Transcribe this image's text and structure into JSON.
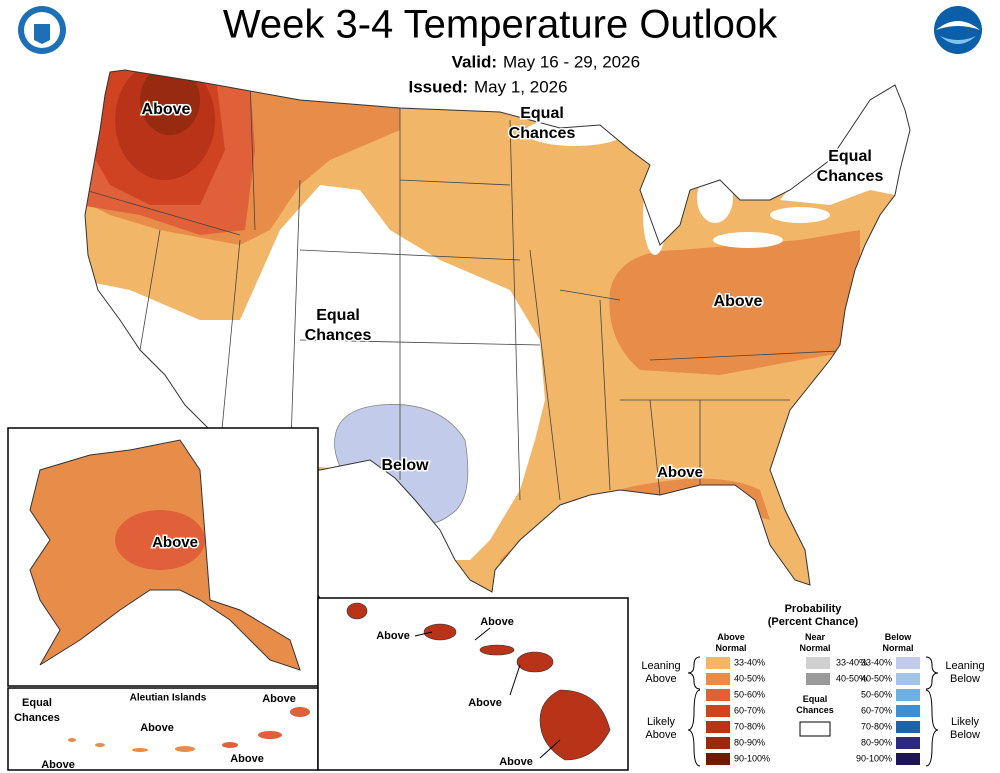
{
  "header": {
    "title": "Week 3-4 Temperature Outlook",
    "valid_label": "Valid:",
    "valid": "May 16 - 29, 2026",
    "issued_label": "Issued:",
    "issued": "May 1, 2026"
  },
  "map_labels": [
    {
      "lines": [
        "Above"
      ]
    },
    {
      "lines": [
        "Equal",
        "Chances"
      ]
    },
    {
      "lines": [
        "Equal",
        "Chances"
      ]
    },
    {
      "lines": [
        "Equal",
        "Chances"
      ]
    },
    {
      "lines": [
        "Above"
      ]
    },
    {
      "lines": [
        "Below"
      ]
    },
    {
      "lines": [
        "Above"
      ]
    },
    {
      "lines": [
        "Above"
      ]
    },
    {
      "lines": [
        "Above"
      ]
    },
    {
      "lines": [
        "Above"
      ]
    },
    {
      "lines": [
        "Above"
      ]
    },
    {
      "lines": [
        "Above"
      ]
    },
    {
      "lines": [
        "Equal",
        "Chances"
      ]
    },
    {
      "lines": [
        "Above"
      ]
    },
    {
      "lines": [
        "Above"
      ]
    },
    {
      "lines": [
        "Above"
      ]
    },
    {
      "lines": [
        "Above"
      ]
    }
  ],
  "aleutian_title": "Aleutian Islands",
  "legend": {
    "title": [
      "Probability",
      "(Percent Chance)"
    ],
    "above_header": [
      "Above",
      "Normal"
    ],
    "near_header": [
      "Near",
      "Normal"
    ],
    "below_header": [
      "Below",
      "Normal"
    ],
    "leaning_above": [
      "Leaning",
      "Above"
    ],
    "likely_above": [
      "Likely",
      "Above"
    ],
    "equal_chances": [
      "Equal",
      "Chances"
    ],
    "leaning_below": [
      "Leaning",
      "Below"
    ],
    "likely_below": [
      "Likely",
      "Below"
    ],
    "above": [
      {
        "label": "33-40%",
        "color": "#f2b668"
      },
      {
        "label": "40-50%",
        "color": "#e88c4a"
      },
      {
        "label": "50-60%",
        "color": "#e0603a"
      },
      {
        "label": "60-70%",
        "color": "#cf4323"
      },
      {
        "label": "70-80%",
        "color": "#b83318"
      },
      {
        "label": "80-90%",
        "color": "#982a10"
      },
      {
        "label": "90-100%",
        "color": "#6e1b06"
      }
    ],
    "near": [
      {
        "label": "33-40%",
        "color": "#d0d0d0"
      },
      {
        "label": "40-50%",
        "color": "#9a9a9a"
      }
    ],
    "below": [
      {
        "label": "33-40%",
        "color": "#c2cbe9"
      },
      {
        "label": "40-50%",
        "color": "#a2c4e6"
      },
      {
        "label": "50-60%",
        "color": "#6fb0e0"
      },
      {
        "label": "60-70%",
        "color": "#3f8fd0"
      },
      {
        "label": "70-80%",
        "color": "#1f62a8"
      },
      {
        "label": "80-90%",
        "color": "#2e2a7a"
      },
      {
        "label": "90-100%",
        "color": "#1e1650"
      }
    ]
  }
}
